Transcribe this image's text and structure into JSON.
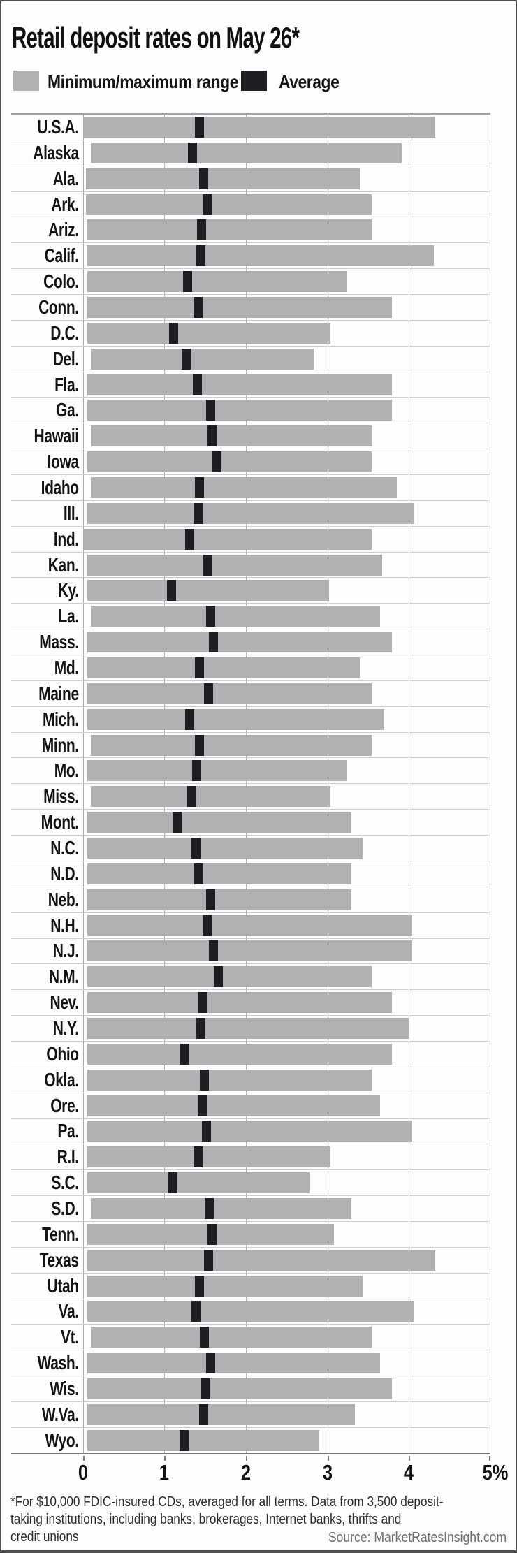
{
  "title": "Retail deposit rates on May 26*",
  "legend": {
    "range_label": "Minimum/maximum range",
    "average_label": "Average"
  },
  "axis": {
    "tick_labels": [
      "0",
      "1",
      "2",
      "3",
      "4",
      "5%"
    ]
  },
  "footnote_lines": [
    "*For $10,000 FDIC-insured CDs, averaged for all terms. Data from 3,500 deposit-",
    "taking institutions, including banks, brokerages, Internet banks, thrifts and",
    "credit unions"
  ],
  "source": "Source: MarketRatesInsight.com",
  "colors": {
    "range_bar": "#b1b0b3",
    "average_marker": "#1f1d21",
    "gridline": "#ababad",
    "row_separator": "#cdcdcf",
    "axis_line": "#77777a",
    "frame_border": "#4e4e50",
    "source_text": "#6e6e70"
  },
  "chart_data": {
    "type": "range_bar",
    "orientation": "horizontal",
    "title": "Retail deposit rates on May 26*",
    "xlabel": "",
    "xlim": [
      0,
      5
    ],
    "x_tick_labels": [
      "0",
      "1",
      "2",
      "3",
      "4",
      "5%"
    ],
    "legend_entries": [
      "Minimum/maximum range",
      "Average"
    ],
    "grid": "vertical-lines-at-integers",
    "rows": [
      {
        "label": "U.S.A.",
        "min": 0.02,
        "max": 4.33,
        "avg": 1.44
      },
      {
        "label": "Alaska",
        "min": 0.1,
        "max": 3.92,
        "avg": 1.35
      },
      {
        "label": "Ala.",
        "min": 0.04,
        "max": 3.4,
        "avg": 1.49
      },
      {
        "label": "Ark.",
        "min": 0.04,
        "max": 3.55,
        "avg": 1.53
      },
      {
        "label": "Ariz.",
        "min": 0.05,
        "max": 3.55,
        "avg": 1.46
      },
      {
        "label": "Calif.",
        "min": 0.05,
        "max": 4.31,
        "avg": 1.45
      },
      {
        "label": "Colo.",
        "min": 0.06,
        "max": 3.24,
        "avg": 1.29
      },
      {
        "label": "Conn.",
        "min": 0.06,
        "max": 3.8,
        "avg": 1.42
      },
      {
        "label": "D.C.",
        "min": 0.06,
        "max": 3.04,
        "avg": 1.12
      },
      {
        "label": "Del.",
        "min": 0.1,
        "max": 2.84,
        "avg": 1.27
      },
      {
        "label": "Fla.",
        "min": 0.06,
        "max": 3.8,
        "avg": 1.41
      },
      {
        "label": "Ga.",
        "min": 0.06,
        "max": 3.8,
        "avg": 1.57
      },
      {
        "label": "Hawaii",
        "min": 0.1,
        "max": 3.56,
        "avg": 1.59
      },
      {
        "label": "Iowa",
        "min": 0.06,
        "max": 3.55,
        "avg": 1.65
      },
      {
        "label": "Idaho",
        "min": 0.1,
        "max": 3.86,
        "avg": 1.44
      },
      {
        "label": "Ill.",
        "min": 0.06,
        "max": 4.07,
        "avg": 1.42
      },
      {
        "label": "Ind.",
        "min": 0.02,
        "max": 3.55,
        "avg": 1.32
      },
      {
        "label": "Kan.",
        "min": 0.06,
        "max": 3.68,
        "avg": 1.54
      },
      {
        "label": "Ky.",
        "min": 0.06,
        "max": 3.03,
        "avg": 1.09
      },
      {
        "label": "La.",
        "min": 0.1,
        "max": 3.65,
        "avg": 1.57
      },
      {
        "label": "Mass.",
        "min": 0.06,
        "max": 3.8,
        "avg": 1.61
      },
      {
        "label": "Md.",
        "min": 0.06,
        "max": 3.4,
        "avg": 1.44
      },
      {
        "label": "Maine",
        "min": 0.06,
        "max": 3.55,
        "avg": 1.55
      },
      {
        "label": "Mich.",
        "min": 0.06,
        "max": 3.7,
        "avg": 1.32
      },
      {
        "label": "Minn.",
        "min": 0.1,
        "max": 3.55,
        "avg": 1.44
      },
      {
        "label": "Mo.",
        "min": 0.06,
        "max": 3.24,
        "avg": 1.4
      },
      {
        "label": "Miss.",
        "min": 0.1,
        "max": 3.04,
        "avg": 1.34
      },
      {
        "label": "Mont.",
        "min": 0.06,
        "max": 3.3,
        "avg": 1.16
      },
      {
        "label": "N.C.",
        "min": 0.06,
        "max": 3.44,
        "avg": 1.39
      },
      {
        "label": "N.D.",
        "min": 0.06,
        "max": 3.3,
        "avg": 1.43
      },
      {
        "label": "Neb.",
        "min": 0.06,
        "max": 3.3,
        "avg": 1.57
      },
      {
        "label": "N.H.",
        "min": 0.06,
        "max": 4.05,
        "avg": 1.53
      },
      {
        "label": "N.J.",
        "min": 0.06,
        "max": 4.05,
        "avg": 1.61
      },
      {
        "label": "N.M.",
        "min": 0.06,
        "max": 3.55,
        "avg": 1.67
      },
      {
        "label": "Nev.",
        "min": 0.06,
        "max": 3.8,
        "avg": 1.48
      },
      {
        "label": "N.Y.",
        "min": 0.06,
        "max": 4.0,
        "avg": 1.45
      },
      {
        "label": "Ohio",
        "min": 0.06,
        "max": 3.8,
        "avg": 1.26
      },
      {
        "label": "Okla.",
        "min": 0.06,
        "max": 3.55,
        "avg": 1.5
      },
      {
        "label": "Ore.",
        "min": 0.06,
        "max": 3.65,
        "avg": 1.47
      },
      {
        "label": "Pa.",
        "min": 0.06,
        "max": 4.05,
        "avg": 1.52
      },
      {
        "label": "R.I.",
        "min": 0.06,
        "max": 3.04,
        "avg": 1.42
      },
      {
        "label": "S.C.",
        "min": 0.06,
        "max": 2.79,
        "avg": 1.11
      },
      {
        "label": "S.D.",
        "min": 0.1,
        "max": 3.3,
        "avg": 1.56
      },
      {
        "label": "Tenn.",
        "min": 0.06,
        "max": 3.09,
        "avg": 1.59
      },
      {
        "label": "Texas",
        "min": 0.06,
        "max": 4.33,
        "avg": 1.55
      },
      {
        "label": "Utah",
        "min": 0.06,
        "max": 3.44,
        "avg": 1.44
      },
      {
        "label": "Va.",
        "min": 0.06,
        "max": 4.06,
        "avg": 1.39
      },
      {
        "label": "Vt.",
        "min": 0.1,
        "max": 3.55,
        "avg": 1.5
      },
      {
        "label": "Wash.",
        "min": 0.06,
        "max": 3.65,
        "avg": 1.57
      },
      {
        "label": "Wis.",
        "min": 0.06,
        "max": 3.8,
        "avg": 1.51
      },
      {
        "label": "W.Va.",
        "min": 0.06,
        "max": 3.34,
        "avg": 1.49
      },
      {
        "label": "Wyo.",
        "min": 0.06,
        "max": 2.91,
        "avg": 1.25
      }
    ]
  }
}
